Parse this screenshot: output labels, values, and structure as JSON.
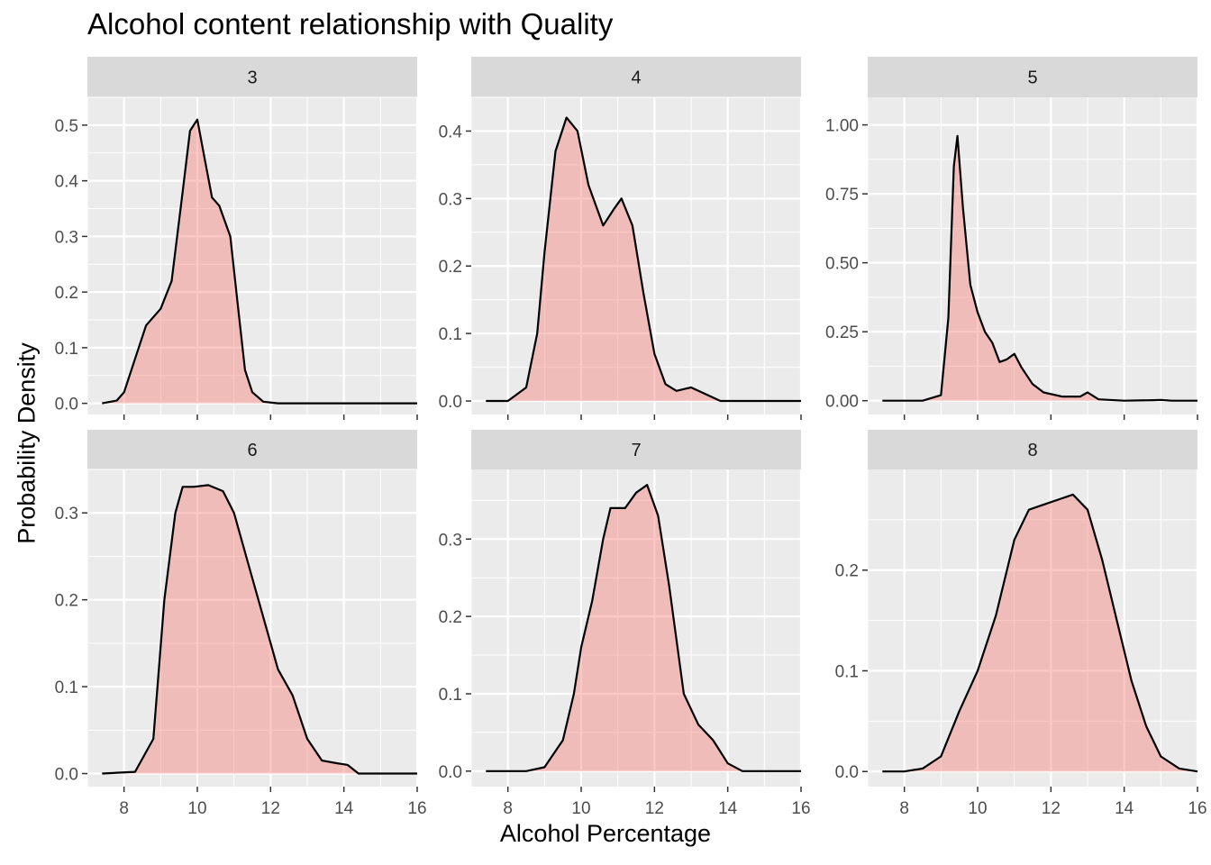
{
  "chart_data": {
    "type": "area",
    "title": "Alcohol content relationship with Quality",
    "xlabel": "Alcohol Percentage",
    "ylabel": "Probability Density",
    "xlim": [
      7,
      16
    ],
    "x_ticks": [
      8,
      10,
      12,
      14,
      16
    ],
    "fill_color": "#F8766D",
    "fill_opacity": 0.4,
    "line_color": "#000000",
    "panel_background": "#EBEBEB",
    "strip_background": "#D9D9D9",
    "grid": true,
    "facets": [
      {
        "label": "3",
        "ylim": [
          -0.02,
          0.55
        ],
        "y_ticks": [
          "0.0",
          "0.1",
          "0.2",
          "0.3",
          "0.4",
          "0.5"
        ],
        "x": [
          7.4,
          7.8,
          8.0,
          8.3,
          8.6,
          9.0,
          9.3,
          9.6,
          9.8,
          10.0,
          10.2,
          10.4,
          10.6,
          10.9,
          11.1,
          11.3,
          11.5,
          11.8,
          12.2,
          13.0,
          14.0,
          15.0,
          16.0
        ],
        "y": [
          0.0,
          0.005,
          0.02,
          0.08,
          0.14,
          0.17,
          0.22,
          0.38,
          0.49,
          0.51,
          0.44,
          0.37,
          0.355,
          0.3,
          0.18,
          0.06,
          0.02,
          0.003,
          0.0,
          0.0,
          0.0,
          0.0,
          0.0
        ]
      },
      {
        "label": "4",
        "ylim": [
          -0.02,
          0.45
        ],
        "y_ticks": [
          "0.0",
          "0.1",
          "0.2",
          "0.3",
          "0.4"
        ],
        "x": [
          7.4,
          8.0,
          8.5,
          8.8,
          9.0,
          9.3,
          9.6,
          9.9,
          10.2,
          10.6,
          10.9,
          11.1,
          11.4,
          11.7,
          12.0,
          12.3,
          12.6,
          13.0,
          13.4,
          13.8,
          16.0
        ],
        "y": [
          0.0,
          0.0,
          0.02,
          0.1,
          0.22,
          0.37,
          0.42,
          0.4,
          0.32,
          0.26,
          0.285,
          0.3,
          0.26,
          0.16,
          0.07,
          0.025,
          0.015,
          0.02,
          0.01,
          0.0,
          0.0
        ],
        "annotations": []
      },
      {
        "label": "5",
        "ylim": [
          -0.05,
          1.1
        ],
        "y_ticks": [
          "0.00",
          "0.25",
          "0.50",
          "0.75",
          "1.00"
        ],
        "x": [
          7.4,
          8.5,
          9.0,
          9.2,
          9.35,
          9.45,
          9.6,
          9.8,
          10.0,
          10.2,
          10.4,
          10.6,
          10.8,
          11.0,
          11.2,
          11.5,
          11.8,
          12.3,
          12.8,
          13.0,
          13.3,
          14.0,
          14.8,
          15.0,
          15.3,
          16.0
        ],
        "y": [
          0.0,
          0.0,
          0.02,
          0.3,
          0.85,
          0.96,
          0.7,
          0.42,
          0.32,
          0.25,
          0.21,
          0.14,
          0.15,
          0.17,
          0.12,
          0.06,
          0.03,
          0.015,
          0.015,
          0.03,
          0.005,
          0.0,
          0.002,
          0.003,
          0.0,
          0.0
        ]
      },
      {
        "label": "6",
        "ylim": [
          -0.015,
          0.35
        ],
        "y_ticks": [
          "0.0",
          "0.1",
          "0.2",
          "0.3"
        ],
        "x": [
          7.4,
          8.3,
          8.8,
          9.1,
          9.4,
          9.6,
          9.9,
          10.3,
          10.7,
          11.0,
          11.4,
          11.8,
          12.2,
          12.6,
          13.0,
          13.4,
          13.8,
          14.1,
          14.4,
          16.0
        ],
        "y": [
          0.0,
          0.002,
          0.04,
          0.2,
          0.3,
          0.33,
          0.33,
          0.332,
          0.325,
          0.3,
          0.24,
          0.18,
          0.12,
          0.09,
          0.04,
          0.015,
          0.012,
          0.01,
          0.0,
          0.0
        ]
      },
      {
        "label": "7",
        "ylim": [
          -0.02,
          0.39
        ],
        "y_ticks": [
          "0.0",
          "0.1",
          "0.2",
          "0.3"
        ],
        "x": [
          7.4,
          8.5,
          9.0,
          9.5,
          9.8,
          10.0,
          10.3,
          10.6,
          10.8,
          11.0,
          11.2,
          11.5,
          11.8,
          12.1,
          12.4,
          12.8,
          13.2,
          13.6,
          14.0,
          14.4,
          16.0
        ],
        "y": [
          0.0,
          0.0,
          0.005,
          0.04,
          0.1,
          0.16,
          0.22,
          0.3,
          0.34,
          0.34,
          0.34,
          0.36,
          0.37,
          0.33,
          0.24,
          0.1,
          0.06,
          0.04,
          0.01,
          0.0,
          0.0
        ]
      },
      {
        "label": "8",
        "ylim": [
          -0.015,
          0.3
        ],
        "y_ticks": [
          "0.0",
          "0.1",
          "0.2"
        ],
        "x": [
          7.4,
          8.0,
          8.5,
          9.0,
          9.5,
          10.0,
          10.5,
          11.0,
          11.4,
          11.8,
          12.2,
          12.6,
          13.0,
          13.4,
          13.8,
          14.2,
          14.6,
          15.0,
          15.5,
          16.0
        ],
        "y": [
          0.0,
          0.0,
          0.003,
          0.015,
          0.06,
          0.1,
          0.155,
          0.23,
          0.26,
          0.265,
          0.27,
          0.275,
          0.26,
          0.21,
          0.15,
          0.09,
          0.045,
          0.015,
          0.003,
          0.0
        ]
      }
    ]
  }
}
